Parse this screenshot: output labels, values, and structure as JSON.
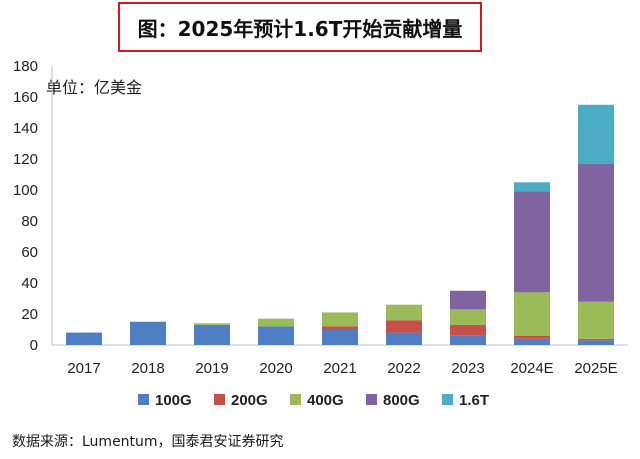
{
  "title": "图：2025年预计1.6T开始贡献增量",
  "unit_label": "单位：亿美金",
  "source": "数据来源：Lumentum，国泰君安证券研究",
  "chart_data": {
    "type": "bar",
    "stacked": true,
    "title": "图：2025年预计1.6T开始贡献增量",
    "ylabel": "单位：亿美金",
    "ylim": [
      0,
      180
    ],
    "yticks": [
      0,
      20,
      40,
      60,
      80,
      100,
      120,
      140,
      160,
      180
    ],
    "grid": false,
    "legend_position": "bottom",
    "categories": [
      "2017",
      "2018",
      "2019",
      "2020",
      "2021",
      "2022",
      "2023",
      "2024E",
      "2025E"
    ],
    "series": [
      {
        "name": "100G",
        "color": "#4f7ec2",
        "values": [
          8,
          15,
          13,
          12,
          10,
          8,
          6,
          4,
          3
        ]
      },
      {
        "name": "200G",
        "color": "#c8504a",
        "values": [
          0,
          0,
          0,
          0,
          2,
          8,
          7,
          2,
          1
        ]
      },
      {
        "name": "400G",
        "color": "#9bbb59",
        "values": [
          0,
          0,
          1,
          5,
          9,
          10,
          10,
          28,
          24
        ]
      },
      {
        "name": "800G",
        "color": "#8064a2",
        "values": [
          0,
          0,
          0,
          0,
          0,
          0,
          12,
          65,
          89
        ]
      },
      {
        "name": "1.6T",
        "color": "#4bacc6",
        "values": [
          0,
          0,
          0,
          0,
          0,
          0,
          0,
          6,
          38
        ]
      }
    ]
  }
}
